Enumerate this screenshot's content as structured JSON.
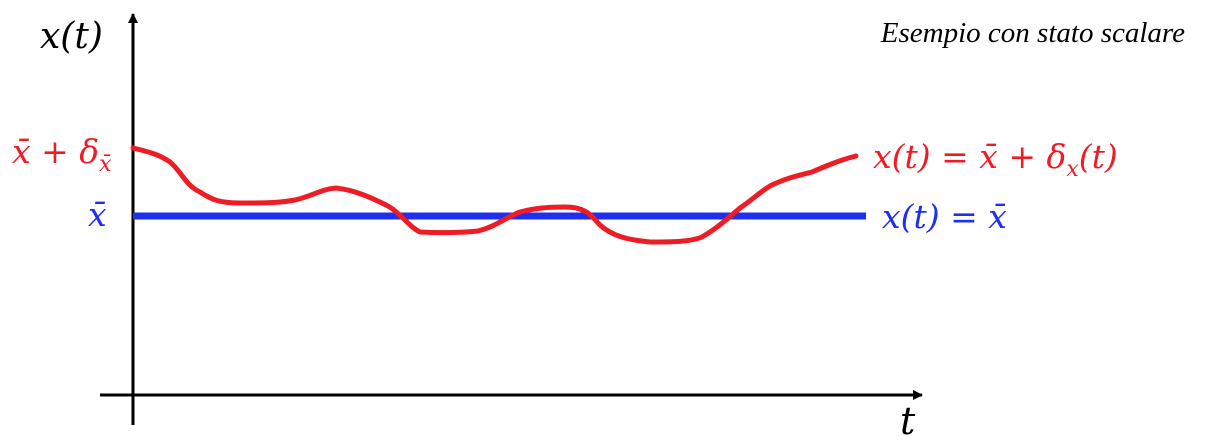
{
  "caption": "Esempio con stato scalare",
  "axes": {
    "y_label": "x(t)",
    "x_label": "t"
  },
  "levels": {
    "perturbed_label": {
      "main": "x̄ + δ",
      "subscript": "x̄"
    },
    "equilibrium_label": "x̄"
  },
  "curves": {
    "perturbed": {
      "label_main": "x(t) = x̄ + δ",
      "label_sub": "x",
      "label_tail": "(t)",
      "color": "#ee1c25"
    },
    "equilibrium": {
      "label": "x(t) = x̄",
      "color": "#1f2ff0"
    }
  },
  "colors": {
    "axis": "#000000",
    "text": "#000000"
  }
}
